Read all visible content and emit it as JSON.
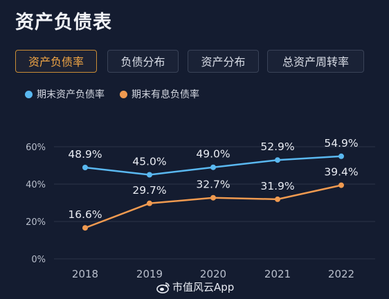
{
  "title": "资产负债表",
  "tabs": [
    {
      "label": "资产负债率",
      "active": true
    },
    {
      "label": "负债分布",
      "active": false
    },
    {
      "label": "资产分布",
      "active": false
    },
    {
      "label": "总资产周转率",
      "active": false
    }
  ],
  "colors": {
    "background": "#141c30",
    "series_blue": "#5ab8f0",
    "series_orange": "#f09a50",
    "active_tab": "#f0a545",
    "grid": "#2b3448",
    "axis_text": "#b9bfcc"
  },
  "chart_data": {
    "type": "line",
    "x": [
      "2018",
      "2019",
      "2020",
      "2021",
      "2022"
    ],
    "ylim": [
      0,
      60
    ],
    "yticks": [
      "0%",
      "20%",
      "40%",
      "60%"
    ],
    "grid": true,
    "legend_position": "top-left",
    "series": [
      {
        "name": "期末资产负债率",
        "values": [
          48.9,
          45.0,
          49.0,
          52.9,
          54.9
        ],
        "labels": [
          "48.9%",
          "45.0%",
          "49.0%",
          "52.9%",
          "54.9%"
        ],
        "color": "#5ab8f0"
      },
      {
        "name": "期末有息负债率",
        "values": [
          16.6,
          29.7,
          32.7,
          31.9,
          39.4
        ],
        "labels": [
          "16.6%",
          "29.7%",
          "32.7%",
          "31.9%",
          "39.4%"
        ],
        "color": "#f09a50"
      }
    ]
  },
  "watermark": {
    "text": "市值风云App",
    "icon": "weibo-icon"
  }
}
